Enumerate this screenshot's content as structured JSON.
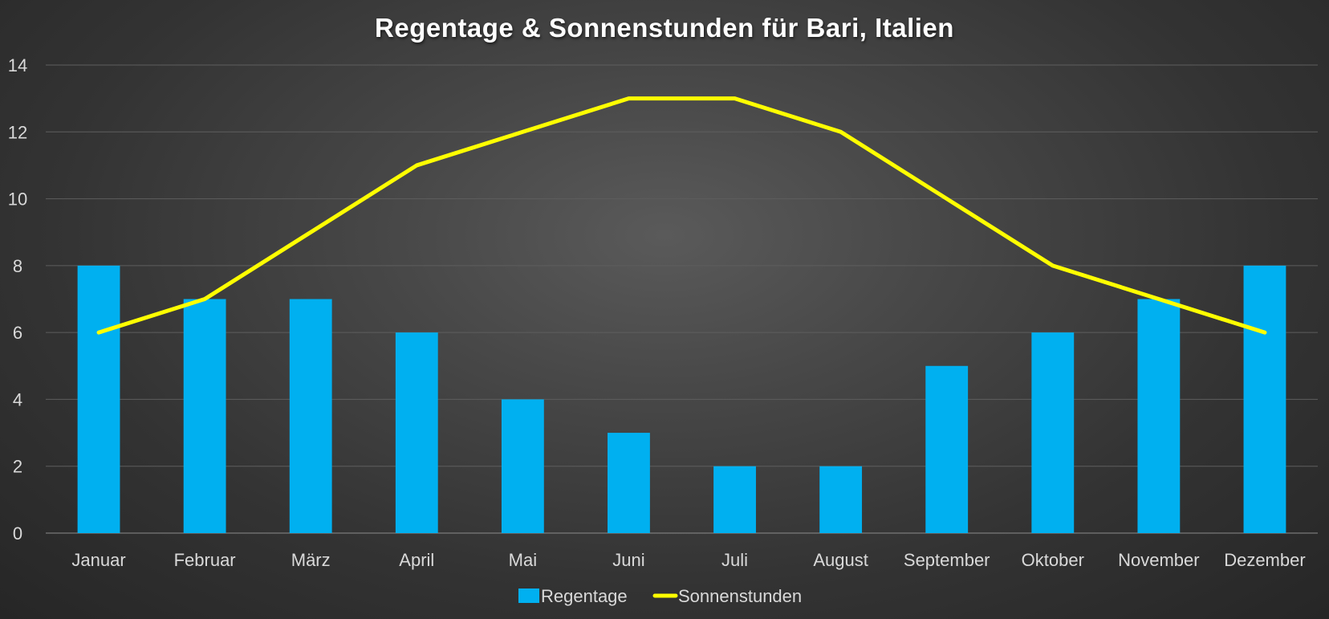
{
  "chart_data": {
    "type": "bar",
    "title": "Regentage & Sonnenstunden für Bari, Italien",
    "categories": [
      "Januar",
      "Februar",
      "März",
      "April",
      "Mai",
      "Juni",
      "Juli",
      "August",
      "September",
      "Oktober",
      "November",
      "Dezember"
    ],
    "series": [
      {
        "name": "Regentage",
        "type": "bar",
        "color": "#00b0f0",
        "values": [
          8,
          7,
          7,
          6,
          4,
          3,
          2,
          2,
          5,
          6,
          7,
          8
        ]
      },
      {
        "name": "Sonnenstunden",
        "type": "line",
        "color": "#ffff00",
        "values": [
          6,
          7,
          9,
          11,
          12,
          13,
          13,
          12,
          10,
          8,
          7,
          6
        ]
      }
    ],
    "ylim": [
      0,
      14
    ],
    "yticks": [
      0,
      2,
      4,
      6,
      8,
      10,
      12,
      14
    ],
    "grid": true,
    "legend_position": "bottom",
    "background": "#3a3a3a"
  }
}
